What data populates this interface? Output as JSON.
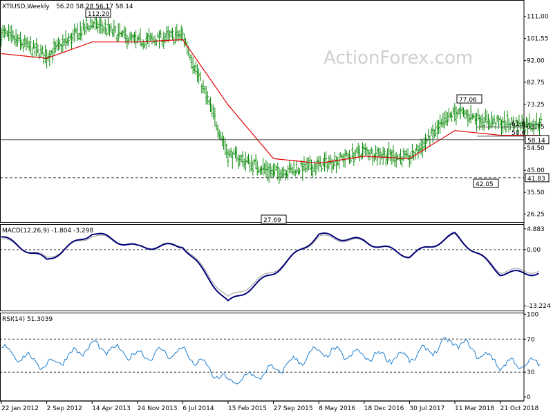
{
  "watermark": "ActionForex.com",
  "colors": {
    "price_bars": "#0a8a0a",
    "ma": "#e00000",
    "macd_line": "#00007a",
    "macd_signal": "#9a9a9a",
    "rsi": "#1e7fd0",
    "fib": "#555555",
    "frame": "#000000",
    "ref_lines": "#333333"
  },
  "chart_data": [
    {
      "type": "ohlc",
      "title": "XTIUSD,Weekly",
      "header_values": "56.20 58.28 56.17 58.14",
      "x_ticks": [
        "22 Jan 2012",
        "2 Sep 2012",
        "14 Apr 2013",
        "24 Nov 2013",
        "6 Jul 2014",
        "15 Feb 2015",
        "27 Sep 2015",
        "8 May 2016",
        "18 Dec 2016",
        "30 Jul 2017",
        "11 Mar 2018",
        "21 Oct 2018"
      ],
      "y_ticks": [
        "111.00",
        "101.55",
        "92.00",
        "82.75",
        "73.25",
        "63.75",
        "54.50",
        "45.00",
        "35.50",
        "26.25"
      ],
      "ylim": [
        22.5,
        118
      ],
      "series": [
        {
          "name": "Price",
          "x": [
            "22 Jan 2012",
            "2 Sep 2012",
            "14 Apr 2013",
            "24 Nov 2013",
            "6 Jul 2014",
            "15 Feb 2015",
            "27 Sep 2015",
            "8 May 2016",
            "18 Dec 2016",
            "30 Jul 2017",
            "11 Mar 2018",
            "21 Oct 2018"
          ],
          "y": [
            104,
            94,
            108,
            100,
            103,
            52,
            44,
            47,
            53,
            50,
            70,
            65
          ]
        },
        {
          "name": "MA",
          "x": [
            "22 Jan 2012",
            "2 Sep 2012",
            "14 Apr 2013",
            "24 Nov 2013",
            "6 Jul 2014",
            "15 Feb 2015",
            "27 Sep 2015",
            "8 May 2016",
            "18 Dec 2016",
            "30 Jul 2017",
            "11 Mar 2018",
            "21 Oct 2018"
          ],
          "y": [
            95,
            93,
            100,
            100,
            101,
            73,
            50,
            48,
            51,
            50,
            62,
            60
          ]
        }
      ],
      "annotations": [
        "112.20",
        "27.69",
        "77.06",
        "42.05",
        "61.8",
        "50.0"
      ],
      "levels": [
        {
          "label": "58.14",
          "value": 58.14
        },
        {
          "label": "41.83",
          "value": 41.83
        }
      ],
      "fib_levels": [
        {
          "label": "61.8",
          "value": 63.5
        },
        {
          "label": "50.0",
          "value": 59.6
        }
      ]
    },
    {
      "type": "line",
      "title": "MACD(12,26,9) -1.804 -3.298",
      "y_ticks": [
        "4.883",
        "0.00",
        "-13.224"
      ],
      "ylim": [
        -14.5,
        6
      ],
      "series": [
        {
          "name": "MACD",
          "x": [
            "22 Jan 2012",
            "2 Sep 2012",
            "14 Apr 2013",
            "24 Nov 2013",
            "6 Jul 2014",
            "15 Feb 2015",
            "27 Sep 2015",
            "8 May 2016",
            "18 Dec 2016",
            "30 Jul 2017",
            "11 Mar 2018",
            "21 Oct 2018"
          ],
          "y": [
            3.0,
            -2.5,
            4.0,
            0.5,
            1.0,
            -12.5,
            -5.5,
            3.5,
            2.0,
            -1.5,
            3.5,
            -5.5
          ]
        },
        {
          "name": "Signal",
          "x": [
            "22 Jan 2012",
            "2 Sep 2012",
            "14 Apr 2013",
            "24 Nov 2013",
            "6 Jul 2014",
            "15 Feb 2015",
            "27 Sep 2015",
            "8 May 2016",
            "18 Dec 2016",
            "30 Jul 2017",
            "11 Mar 2018",
            "21 Oct 2018"
          ],
          "y": [
            2.5,
            -2.0,
            3.5,
            0.6,
            1.2,
            -11.5,
            -5.0,
            3.0,
            1.8,
            -1.3,
            3.2,
            -5.0
          ]
        }
      ]
    },
    {
      "type": "line",
      "title": "RSI(14) 51.3039",
      "y_ticks": [
        "100",
        "70",
        "30",
        "0"
      ],
      "ylim": [
        -5,
        102
      ],
      "levels": [
        {
          "label": "70",
          "value": 70
        },
        {
          "label": "30",
          "value": 30
        }
      ],
      "series": [
        {
          "name": "RSI",
          "x": [
            "22 Jan 2012",
            "2 Sep 2012",
            "14 Apr 2013",
            "24 Nov 2013",
            "6 Jul 2014",
            "15 Feb 2015",
            "27 Sep 2015",
            "8 May 2016",
            "18 Dec 2016",
            "30 Jul 2017",
            "11 Mar 2018",
            "21 Oct 2018"
          ],
          "y": [
            58,
            38,
            62,
            50,
            55,
            18,
            32,
            55,
            50,
            48,
            68,
            40
          ]
        }
      ]
    }
  ]
}
